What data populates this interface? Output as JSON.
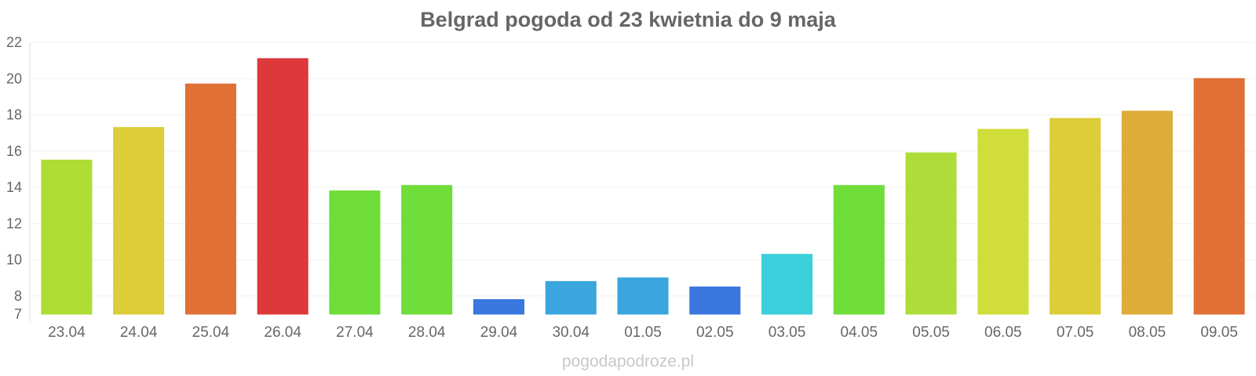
{
  "title": "Belgrad pogoda od 23 kwietnia do 9 maja",
  "footer": "pogodapodroze.pl",
  "chart_data": {
    "type": "bar",
    "title": "Belgrad pogoda od 23 kwietnia do 9 maja",
    "xlabel": "",
    "ylabel": "",
    "ylim": [
      7,
      22
    ],
    "yticks": [
      7,
      8,
      10,
      12,
      14,
      16,
      18,
      20,
      22
    ],
    "grid": true,
    "categories": [
      "23.04",
      "24.04",
      "25.04",
      "26.04",
      "27.04",
      "28.04",
      "29.04",
      "30.04",
      "01.05",
      "02.05",
      "03.05",
      "04.05",
      "05.05",
      "06.05",
      "07.05",
      "08.05",
      "09.05"
    ],
    "values": [
      15.5,
      17.3,
      19.7,
      21.1,
      13.8,
      14.1,
      7.8,
      8.8,
      9.0,
      8.5,
      10.3,
      14.1,
      15.9,
      17.2,
      17.8,
      18.2,
      20.0
    ],
    "colors": [
      "#abdc2c",
      "#dbcb33",
      "#df6b30",
      "#dc3334",
      "#6adc34",
      "#6adc34",
      "#3473dd",
      "#35a3dc",
      "#35a3dc",
      "#3473dd",
      "#36cedb",
      "#6adc34",
      "#abdc34",
      "#cfdc34",
      "#dbcb33",
      "#dcaa33",
      "#df6b30"
    ]
  }
}
